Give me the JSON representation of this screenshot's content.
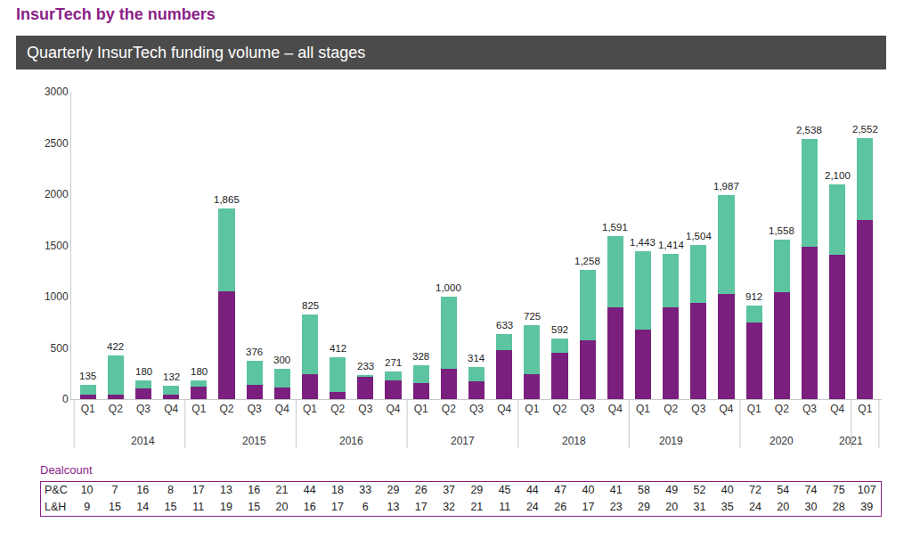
{
  "heading": "InsurTech by the numbers",
  "chart_data": {
    "type": "bar",
    "title": "Quarterly InsurTech funding volume – all stages",
    "stacked": true,
    "grid": false,
    "categories": [
      "Q1",
      "Q2",
      "Q3",
      "Q4",
      "Q1",
      "Q2",
      "Q3",
      "Q4",
      "Q1",
      "Q2",
      "Q3",
      "Q4",
      "Q1",
      "Q2",
      "Q3",
      "Q4",
      "Q1",
      "Q2",
      "Q3",
      "Q4",
      "Q1",
      "Q2",
      "Q3",
      "Q4",
      "Q1",
      "Q2",
      "Q3",
      "Q4",
      "Q1"
    ],
    "category_groups": [
      "2014",
      "2014",
      "2014",
      "2014",
      "2015",
      "2015",
      "2015",
      "2015",
      "2016",
      "2016",
      "2016",
      "2016",
      "2017",
      "2017",
      "2017",
      "2017",
      "2018",
      "2018",
      "2018",
      "2018",
      "2019",
      "2019",
      "2019",
      "2019",
      "2020",
      "2020",
      "2020",
      "2020",
      "2021"
    ],
    "series": [
      {
        "color": "#7a1f7d",
        "values": [
          40,
          40,
          105,
          40,
          120,
          1050,
          140,
          115,
          245,
          70,
          220,
          185,
          155,
          295,
          175,
          480,
          245,
          450,
          570,
          895,
          680,
          895,
          940,
          1025,
          750,
          1045,
          1490,
          1405,
          1750
        ]
      },
      {
        "color": "#5cc4a0",
        "values": [
          95,
          382,
          75,
          92,
          60,
          815,
          236,
          185,
          580,
          342,
          13,
          86,
          173,
          705,
          139,
          153,
          480,
          142,
          688,
          696,
          763,
          519,
          564,
          962,
          162,
          513,
          1048,
          695,
          802
        ]
      }
    ],
    "totals": {
      "values": [
        135,
        422,
        180,
        132,
        180,
        1865,
        376,
        300,
        825,
        412,
        233,
        271,
        328,
        1000,
        314,
        633,
        725,
        592,
        1258,
        1591,
        1443,
        1414,
        1504,
        1987,
        912,
        1558,
        2538,
        2100,
        2552
      ],
      "value_labels": [
        "135",
        "422",
        "180",
        "132",
        "180",
        "1,865",
        "376",
        "300",
        "825",
        "412",
        "233",
        "271",
        "328",
        "1,000",
        "314",
        "633",
        "725",
        "592",
        "1,258",
        "1,591",
        "1,443",
        "1,414",
        "1,504",
        "1,987",
        "912",
        "1,558",
        "2,538",
        "2,100",
        "2,552"
      ]
    },
    "ylim": [
      0,
      3000
    ],
    "yticks": [
      0,
      500,
      1000,
      1500,
      2000,
      2500,
      3000
    ]
  },
  "deal_count": {
    "title": "Dealcount",
    "rows": [
      {
        "label": "P&C",
        "values": [
          10,
          7,
          16,
          8,
          17,
          13,
          16,
          21,
          44,
          18,
          33,
          29,
          26,
          37,
          29,
          45,
          44,
          47,
          40,
          41,
          58,
          49,
          52,
          40,
          72,
          54,
          74,
          75,
          107
        ]
      },
      {
        "label": "L&H",
        "values": [
          9,
          15,
          14,
          15,
          11,
          19,
          15,
          20,
          16,
          17,
          6,
          13,
          17,
          32,
          21,
          11,
          24,
          26,
          17,
          23,
          29,
          20,
          31,
          35,
          24,
          20,
          30,
          28,
          39
        ]
      }
    ]
  }
}
